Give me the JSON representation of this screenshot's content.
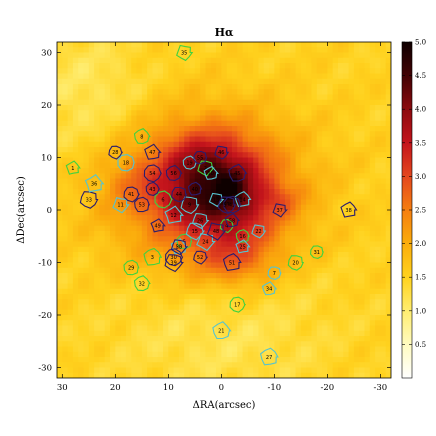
{
  "chart_data": {
    "type": "heatmap",
    "title": "Hα",
    "xlabel": "ΔRA(arcsec)",
    "ylabel": "ΔDec(arcsec)",
    "xlim": [
      31,
      -32
    ],
    "ylim": [
      -32,
      32
    ],
    "x_ticks": [
      30,
      20,
      10,
      0,
      -10,
      -20,
      -30
    ],
    "y_ticks": [
      30,
      20,
      10,
      0,
      -10,
      -20,
      -30
    ],
    "colorbar": {
      "range": [
        0.0,
        5.0
      ],
      "ticks": [
        "0.5",
        "1.0",
        "1.5",
        "2.0",
        "2.5",
        "3.0",
        "3.5",
        "4.0",
        "4.5",
        "5.0"
      ],
      "tick_values": [
        0.5,
        1.0,
        1.5,
        2.0,
        2.5,
        3.0,
        3.5,
        4.0,
        4.5,
        5.0
      ],
      "colors": [
        "#ffffff",
        "#fffbc0",
        "#ffed70",
        "#ffd21e",
        "#fbad0c",
        "#f57e10",
        "#e4471e",
        "#c4141c",
        "#8c0a0e",
        "#420204",
        "#0e0000"
      ]
    },
    "intensity_blobs": [
      {
        "x": 3,
        "y": 3,
        "sx": 12,
        "sy": 10,
        "amp": 1.6
      },
      {
        "x": 1,
        "y": 5,
        "sx": 6,
        "sy": 6,
        "amp": 0.9
      },
      {
        "x": -2,
        "y": 0,
        "sx": 6,
        "sy": 8,
        "amp": 0.8
      },
      {
        "x": 5,
        "y": 9,
        "sx": 5,
        "sy": 4,
        "amp": 0.6
      },
      {
        "x": -3,
        "y": -10,
        "sx": 5,
        "sy": 3,
        "amp": 0.5
      },
      {
        "x": -11,
        "y": 2,
        "sx": 3,
        "sy": 2,
        "amp": 0.4
      },
      {
        "x": 16,
        "y": 5,
        "sx": 4,
        "sy": 3,
        "amp": 0.4
      },
      {
        "x": -2,
        "y": 4,
        "sx": 2,
        "sy": 2,
        "amp": 0.5
      },
      {
        "x": 8,
        "y": 1,
        "sx": 3,
        "sy": 2,
        "amp": 0.45
      },
      {
        "x": 0,
        "y": -22,
        "sx": 14,
        "sy": 10,
        "amp": -0.35
      },
      {
        "x": 25,
        "y": 22,
        "sx": 8,
        "sy": 8,
        "amp": -0.4
      }
    ],
    "background_level": 1.5,
    "regions": [
      {
        "id": "1",
        "x": 28,
        "y": 8,
        "group": "green"
      },
      {
        "id": "2",
        "x": 3,
        "y": 8,
        "group": "green"
      },
      {
        "id": "3",
        "x": 13,
        "y": -9,
        "group": "green"
      },
      {
        "id": "4",
        "x": -1,
        "y": -3,
        "group": "green"
      },
      {
        "id": "5",
        "x": 7,
        "y": -6,
        "group": "green"
      },
      {
        "id": "6",
        "x": 11,
        "y": 2,
        "group": "green"
      },
      {
        "id": "7",
        "x": -10,
        "y": -12,
        "group": "cyan"
      },
      {
        "id": "8",
        "x": 15,
        "y": 14,
        "group": "green"
      },
      {
        "id": "9",
        "x": 6,
        "y": 1,
        "group": "cyan"
      },
      {
        "id": "10",
        "x": 2,
        "y": 7,
        "group": "cyan"
      },
      {
        "id": "11",
        "x": 19,
        "y": 1,
        "group": "cyan"
      },
      {
        "id": "12",
        "x": 9,
        "y": -1,
        "group": "cyan"
      },
      {
        "id": "13",
        "x": 1,
        "y": 2,
        "group": "cyan"
      },
      {
        "id": "14",
        "x": -4,
        "y": 2,
        "group": "cyan"
      },
      {
        "id": "15",
        "x": 5,
        "y": -4,
        "group": "cyan"
      },
      {
        "id": "16",
        "x": -4,
        "y": -5,
        "group": "green"
      },
      {
        "id": "17",
        "x": -3,
        "y": -18,
        "group": "green"
      },
      {
        "id": "18",
        "x": 18,
        "y": 9,
        "group": "cyan"
      },
      {
        "id": "19",
        "x": 6,
        "y": 9,
        "group": "cyan"
      },
      {
        "id": "20",
        "x": -14,
        "y": -10,
        "group": "green"
      },
      {
        "id": "21",
        "x": 0,
        "y": -23,
        "group": "cyan"
      },
      {
        "id": "22",
        "x": -7,
        "y": -4,
        "group": "cyan"
      },
      {
        "id": "23",
        "x": 8,
        "y": -7,
        "group": "cyan"
      },
      {
        "id": "24",
        "x": 3,
        "y": -6,
        "group": "cyan"
      },
      {
        "id": "25",
        "x": -4,
        "y": -7,
        "group": "cyan"
      },
      {
        "id": "26",
        "x": 4,
        "y": -2,
        "group": "cyan"
      },
      {
        "id": "27",
        "x": -9,
        "y": -28,
        "group": "cyan"
      },
      {
        "id": "28",
        "x": 20,
        "y": 11,
        "group": "navy"
      },
      {
        "id": "29",
        "x": 17,
        "y": -11,
        "group": "green"
      },
      {
        "id": "30",
        "x": 9,
        "y": -9,
        "group": "navy"
      },
      {
        "id": "31",
        "x": -18,
        "y": -8,
        "group": "green"
      },
      {
        "id": "32",
        "x": 15,
        "y": -14,
        "group": "green"
      },
      {
        "id": "33",
        "x": 25,
        "y": 2,
        "group": "navy"
      },
      {
        "id": "34",
        "x": -9,
        "y": -15,
        "group": "cyan"
      },
      {
        "id": "35",
        "x": 7,
        "y": 30,
        "group": "green"
      },
      {
        "id": "36",
        "x": 24,
        "y": 5,
        "group": "cyan"
      },
      {
        "id": "37",
        "x": -11,
        "y": 0,
        "group": "navy"
      },
      {
        "id": "38",
        "x": -24,
        "y": 0,
        "group": "navy"
      },
      {
        "id": "39",
        "x": 9,
        "y": -10,
        "group": "navy"
      },
      {
        "id": "40",
        "x": 5,
        "y": 4,
        "group": "navy"
      },
      {
        "id": "41",
        "x": 17,
        "y": 3,
        "group": "navy"
      },
      {
        "id": "42",
        "x": -2,
        "y": 1,
        "group": "navy"
      },
      {
        "id": "43",
        "x": 13,
        "y": 4,
        "group": "navy"
      },
      {
        "id": "44",
        "x": 8,
        "y": 3,
        "group": "navy"
      },
      {
        "id": "45",
        "x": -3,
        "y": 7,
        "group": "navy"
      },
      {
        "id": "46",
        "x": 0,
        "y": 11,
        "group": "navy"
      },
      {
        "id": "47",
        "x": 13,
        "y": 11,
        "group": "navy"
      },
      {
        "id": "48",
        "x": 1,
        "y": -4,
        "group": "navy"
      },
      {
        "id": "49",
        "x": 12,
        "y": -3,
        "group": "navy"
      },
      {
        "id": "50",
        "x": 8,
        "y": -7,
        "group": "navy"
      },
      {
        "id": "51",
        "x": -2,
        "y": -10,
        "group": "navy"
      },
      {
        "id": "52",
        "x": 4,
        "y": -9,
        "group": "navy"
      },
      {
        "id": "53",
        "x": 15,
        "y": 1,
        "group": "navy"
      },
      {
        "id": "54",
        "x": 13,
        "y": 7,
        "group": "navy"
      },
      {
        "id": "55",
        "x": 4,
        "y": 10,
        "group": "navy"
      },
      {
        "id": "56",
        "x": 9,
        "y": 7,
        "group": "navy"
      },
      {
        "id": "57",
        "x": -1,
        "y": 1,
        "group": "navy"
      },
      {
        "id": "58",
        "x": -2,
        "y": -2,
        "group": "navy"
      }
    ],
    "region_colors": {
      "green": "#3fd23f",
      "cyan": "#55c4d0",
      "navy": "#2a1d6e"
    }
  }
}
